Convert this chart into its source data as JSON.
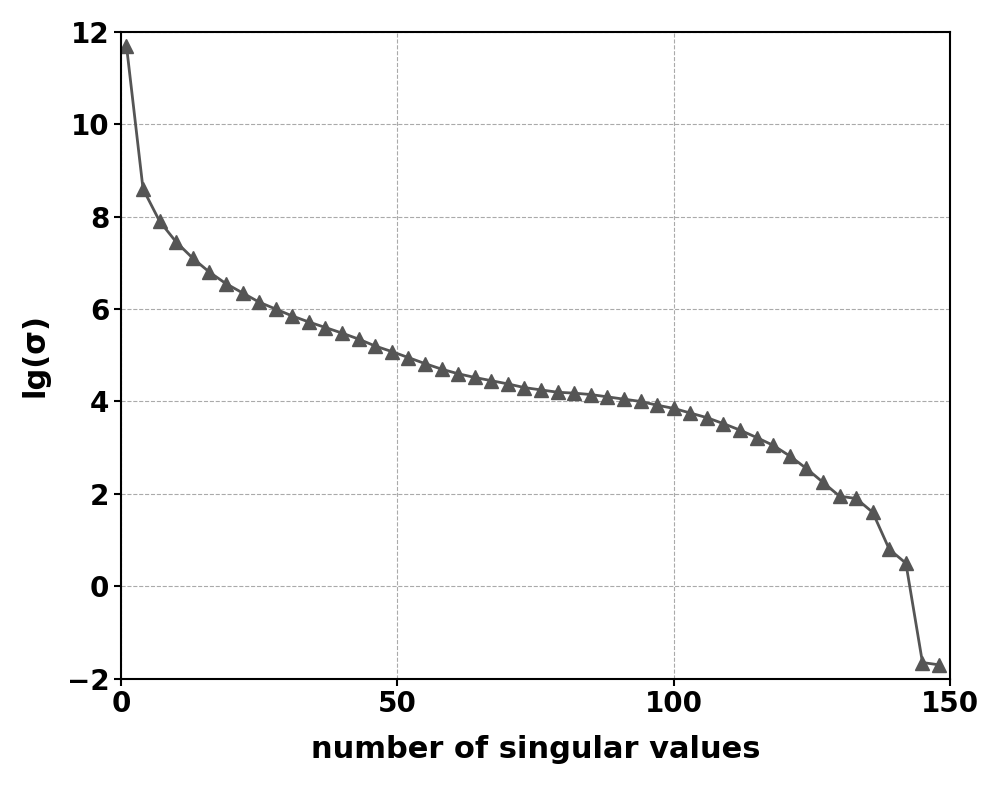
{
  "x_values": [
    1,
    4,
    7,
    10,
    13,
    16,
    19,
    22,
    25,
    28,
    31,
    34,
    37,
    40,
    43,
    46,
    49,
    52,
    55,
    58,
    61,
    64,
    67,
    70,
    73,
    76,
    79,
    82,
    85,
    88,
    91,
    94,
    97,
    100,
    103,
    106,
    109,
    112,
    115,
    118,
    121,
    124,
    127,
    130,
    133,
    136,
    139,
    142,
    145,
    148
  ],
  "y_values": [
    11.7,
    8.6,
    7.9,
    7.45,
    7.1,
    6.8,
    6.55,
    6.35,
    6.15,
    6.0,
    5.85,
    5.72,
    5.6,
    5.48,
    5.35,
    5.2,
    5.08,
    4.95,
    4.82,
    4.7,
    4.6,
    4.52,
    4.45,
    4.38,
    4.3,
    4.25,
    4.2,
    4.18,
    4.15,
    4.1,
    4.05,
    4.0,
    3.92,
    3.85,
    3.75,
    3.65,
    3.52,
    3.38,
    3.22,
    3.05,
    2.82,
    2.55,
    2.25,
    1.95,
    1.9,
    1.6,
    0.8,
    0.5,
    -1.65,
    -1.7
  ],
  "xlabel": "number of singular values",
  "ylabel": "lg(σ)",
  "xlim": [
    0,
    150
  ],
  "ylim": [
    -2,
    12
  ],
  "xticks": [
    0,
    50,
    100,
    150
  ],
  "yticks": [
    -2,
    0,
    2,
    4,
    6,
    8,
    10,
    12
  ],
  "marker": "^",
  "marker_color": "#555555",
  "line_color": "#555555",
  "line_width": 2.0,
  "marker_size": 10,
  "grid_color": "#aaaaaa",
  "grid_linestyle": "--",
  "background_color": "#ffffff",
  "xlabel_fontsize": 22,
  "ylabel_fontsize": 22,
  "tick_fontsize": 20
}
